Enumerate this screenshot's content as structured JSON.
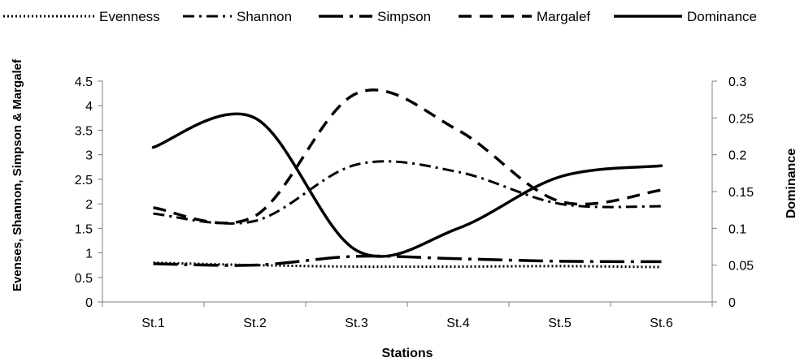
{
  "chart_data": {
    "type": "line",
    "categories": [
      "St.1",
      "St.2",
      "St.3",
      "St.4",
      "St.5",
      "St.6"
    ],
    "xlabel": "Stations",
    "ylabel": "Evenses, Shannon, Simpson & Margalef",
    "y2label": "Dominance",
    "ylim": [
      0,
      4.5
    ],
    "y2lim": [
      0,
      0.3
    ],
    "yticks": [
      "0",
      "0.5",
      "1",
      "1.5",
      "2",
      "2.5",
      "3",
      "3.5",
      "4",
      "4.5"
    ],
    "y2ticks": [
      "0",
      "0.05",
      "0.1",
      "0.15",
      "0.2",
      "0.25",
      "0.3"
    ],
    "grid": false,
    "legend_position": "top",
    "series": [
      {
        "name": "Evenness",
        "axis": "left",
        "style": "dotted",
        "values": [
          0.8,
          0.75,
          0.72,
          0.72,
          0.73,
          0.71
        ]
      },
      {
        "name": "Shannon",
        "axis": "left",
        "style": "dash-dot",
        "values": [
          1.8,
          1.65,
          2.8,
          2.65,
          2.0,
          1.95
        ]
      },
      {
        "name": "Simpson",
        "axis": "left",
        "style": "long-dash-dot",
        "values": [
          0.78,
          0.75,
          0.93,
          0.88,
          0.83,
          0.82
        ]
      },
      {
        "name": "Margalef",
        "axis": "left",
        "style": "dashed",
        "values": [
          1.92,
          1.75,
          4.25,
          3.5,
          2.05,
          2.28
        ]
      },
      {
        "name": "Dominance",
        "axis": "right",
        "style": "solid",
        "values": [
          0.21,
          0.25,
          0.07,
          0.1,
          0.17,
          0.185
        ]
      }
    ]
  }
}
